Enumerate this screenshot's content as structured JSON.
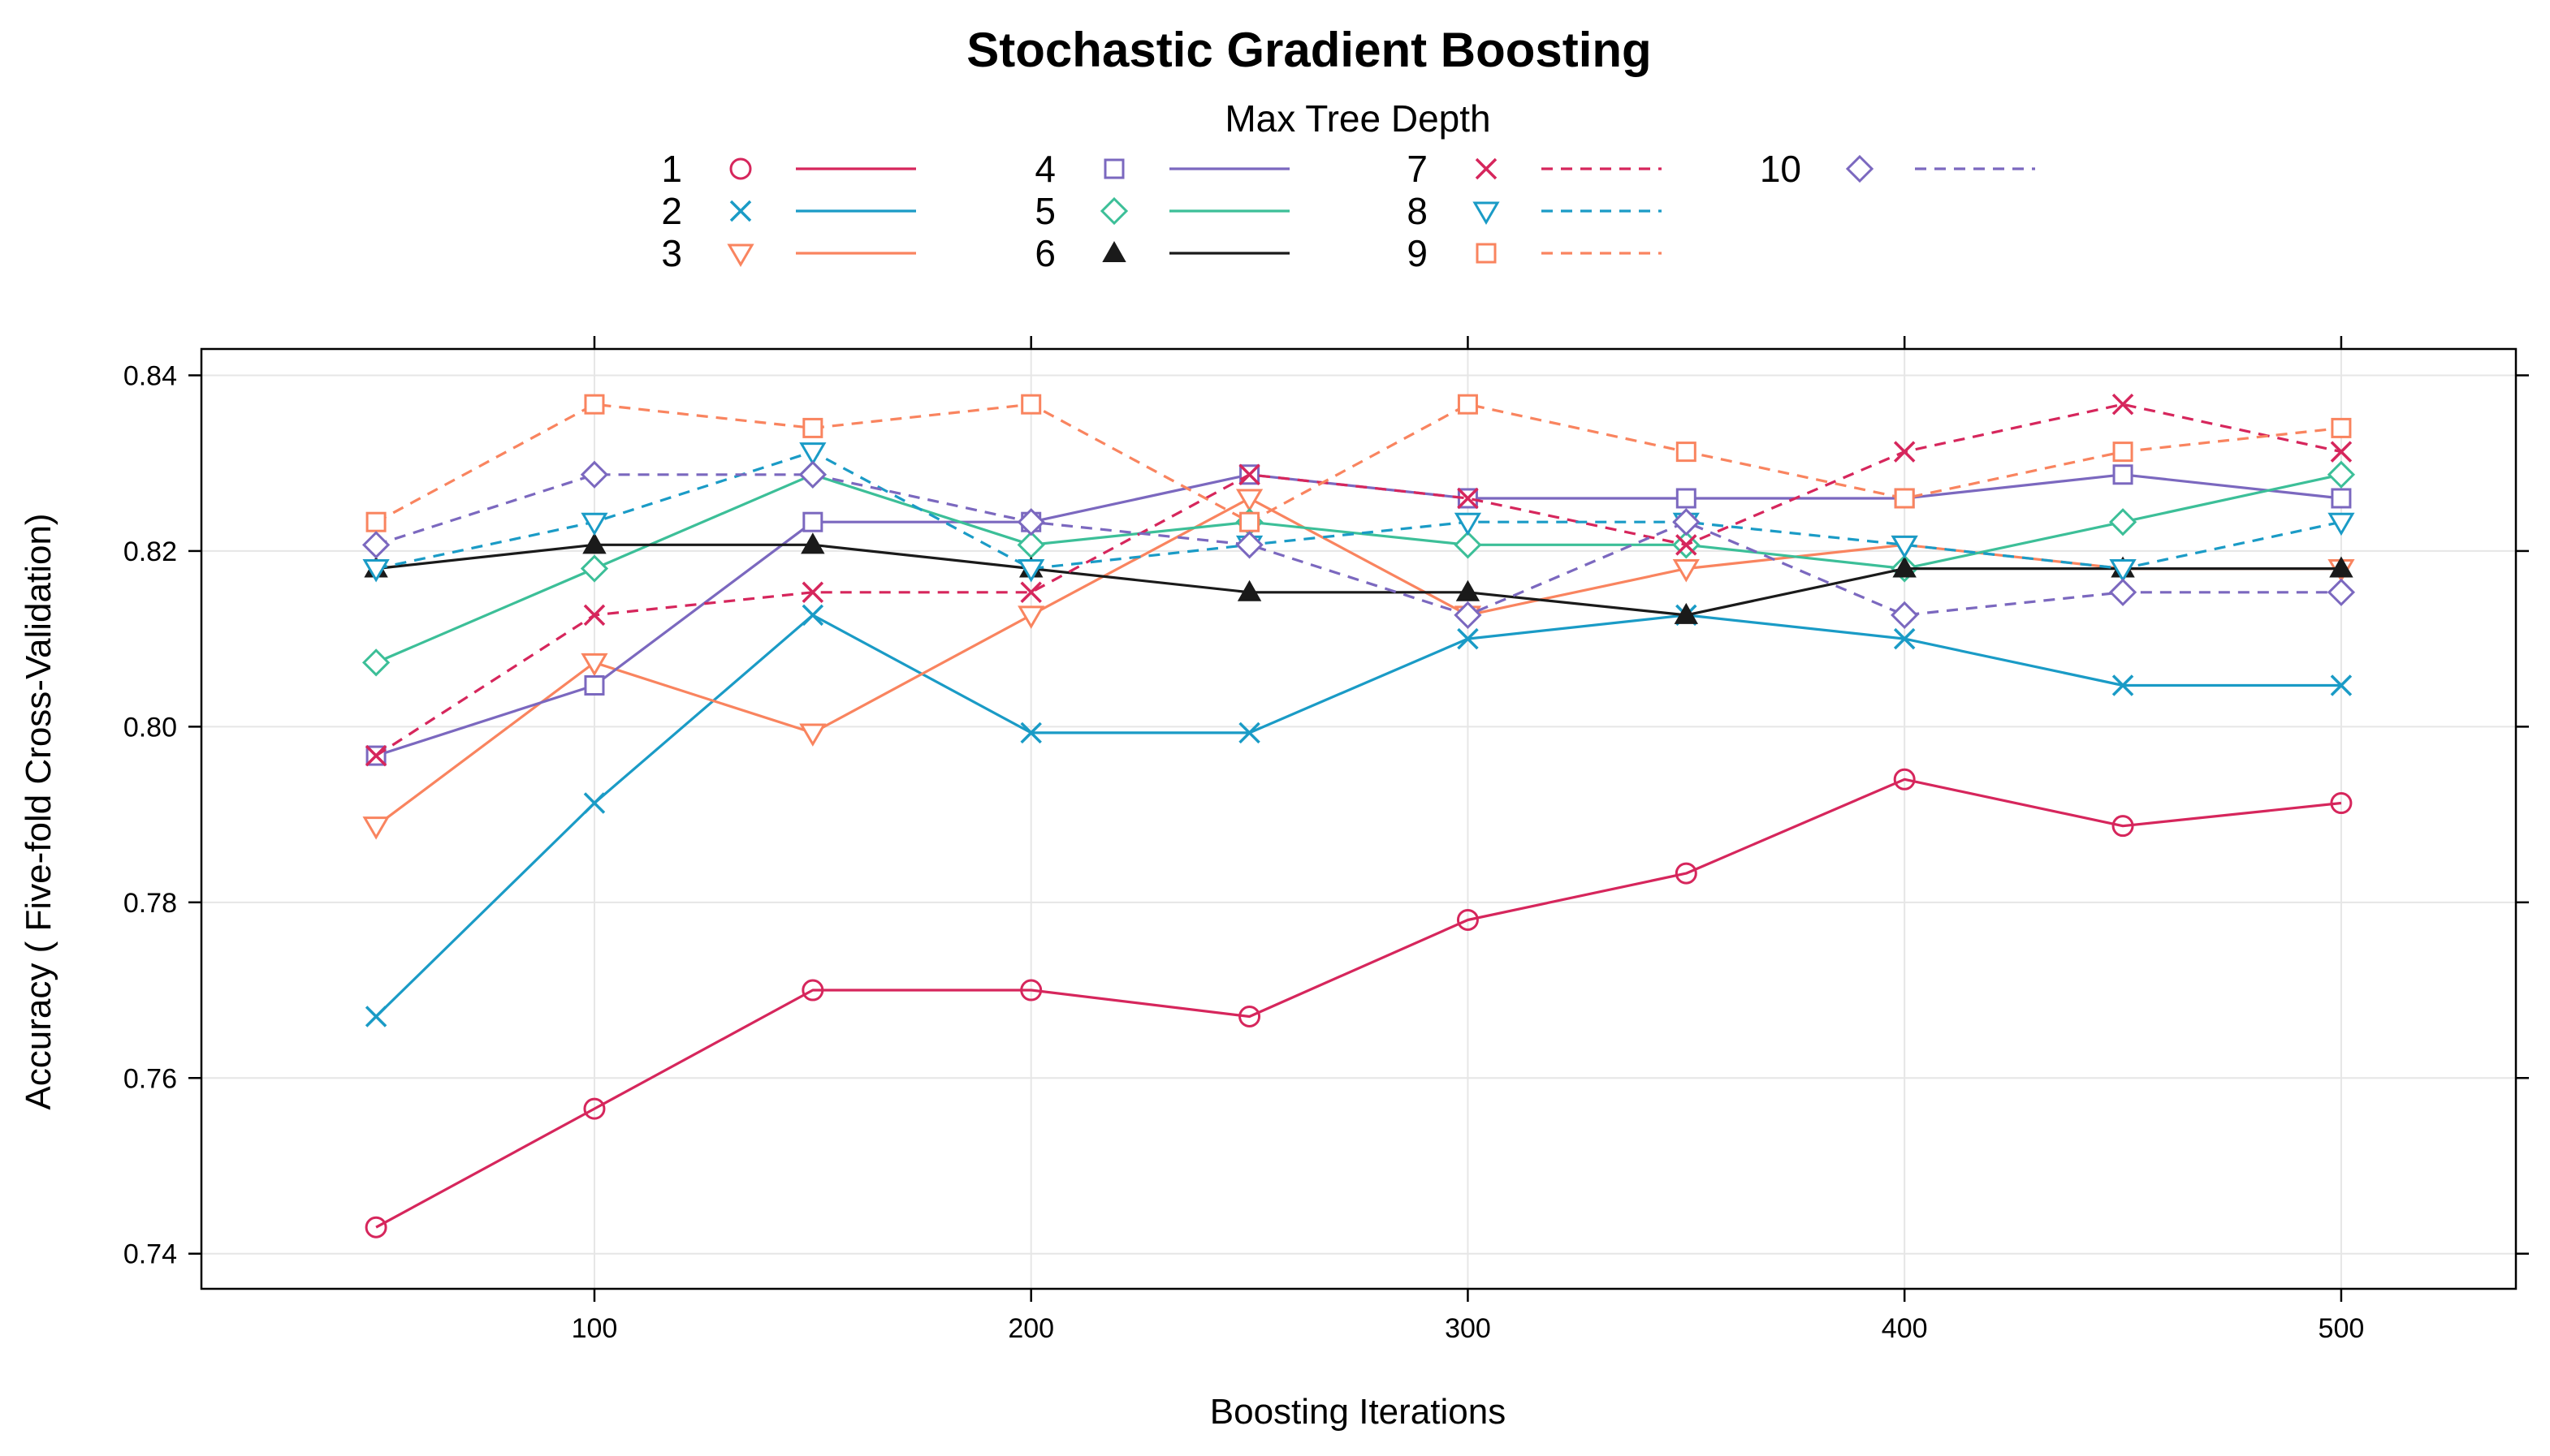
{
  "chart_data": {
    "type": "line",
    "title": "Stochastic Gradient Boosting",
    "legend_title": "Max Tree Depth",
    "legend_position": "top",
    "xlabel": "Boosting Iterations",
    "ylabel": "Accuracy ( Five-fold Cross-Validation)",
    "x": [
      50,
      100,
      150,
      200,
      250,
      300,
      350,
      400,
      450,
      500
    ],
    "xlim": [
      10,
      540
    ],
    "ylim": [
      0.736,
      0.843
    ],
    "x_ticks": [
      100,
      200,
      300,
      400,
      500
    ],
    "x_tick_labels": [
      "100",
      "200",
      "300",
      "400",
      "500"
    ],
    "y_ticks": [
      0.74,
      0.76,
      0.78,
      0.8,
      0.82,
      0.84
    ],
    "y_tick_labels": [
      "0.74",
      "0.76",
      "0.78",
      "0.80",
      "0.82",
      "0.84"
    ],
    "grid": true,
    "series": [
      {
        "name": "1",
        "color": "#d6265c",
        "marker": "circle",
        "dash": "solid",
        "values": [
          0.743,
          0.7565,
          0.77,
          0.77,
          0.767,
          0.778,
          0.7833,
          0.794,
          0.7887,
          0.7913
        ]
      },
      {
        "name": "2",
        "color": "#1a9bc6",
        "marker": "x",
        "dash": "solid",
        "values": [
          0.767,
          0.7913,
          0.8127,
          0.7993,
          0.7993,
          0.81,
          0.8127,
          0.81,
          0.8047,
          0.8047
        ]
      },
      {
        "name": "3",
        "color": "#f9845f",
        "marker": "triangle-down",
        "dash": "solid",
        "values": [
          0.7887,
          0.8073,
          0.7993,
          0.8127,
          0.826,
          0.8127,
          0.818,
          0.8207,
          0.818,
          0.818
        ]
      },
      {
        "name": "4",
        "color": "#7b68bf",
        "marker": "square",
        "dash": "solid",
        "values": [
          0.7967,
          0.8047,
          0.8233,
          0.8233,
          0.8287,
          0.826,
          0.826,
          0.826,
          0.8287,
          0.826
        ]
      },
      {
        "name": "5",
        "color": "#3cbf98",
        "marker": "diamond",
        "dash": "solid",
        "values": [
          0.8073,
          0.818,
          0.8287,
          0.8207,
          0.8233,
          0.8207,
          0.8207,
          0.818,
          0.8233,
          0.8287
        ]
      },
      {
        "name": "6",
        "color": "#1a1a1a",
        "marker": "triangle-up-filled",
        "dash": "solid",
        "values": [
          0.818,
          0.8207,
          0.8207,
          0.818,
          0.8153,
          0.8153,
          0.8127,
          0.818,
          0.818,
          0.818
        ]
      },
      {
        "name": "7",
        "color": "#d6265c",
        "marker": "x",
        "dash": "dashed",
        "values": [
          0.7967,
          0.8127,
          0.8153,
          0.8153,
          0.8287,
          0.826,
          0.8207,
          0.8313,
          0.8367,
          0.8313
        ]
      },
      {
        "name": "8",
        "color": "#1a9bc6",
        "marker": "triangle-down",
        "dash": "dashed",
        "values": [
          0.818,
          0.8233,
          0.8313,
          0.818,
          0.8207,
          0.8233,
          0.8233,
          0.8207,
          0.818,
          0.8233
        ]
      },
      {
        "name": "9",
        "color": "#f9845f",
        "marker": "square",
        "dash": "dashed",
        "values": [
          0.8233,
          0.8367,
          0.834,
          0.8367,
          0.8233,
          0.8367,
          0.8313,
          0.826,
          0.8313,
          0.834
        ]
      },
      {
        "name": "10",
        "color": "#7b68bf",
        "marker": "diamond",
        "dash": "dashed",
        "values": [
          0.8207,
          0.8287,
          0.8287,
          0.8233,
          0.8207,
          0.8127,
          0.8233,
          0.8127,
          0.8153,
          0.8153
        ]
      }
    ]
  }
}
